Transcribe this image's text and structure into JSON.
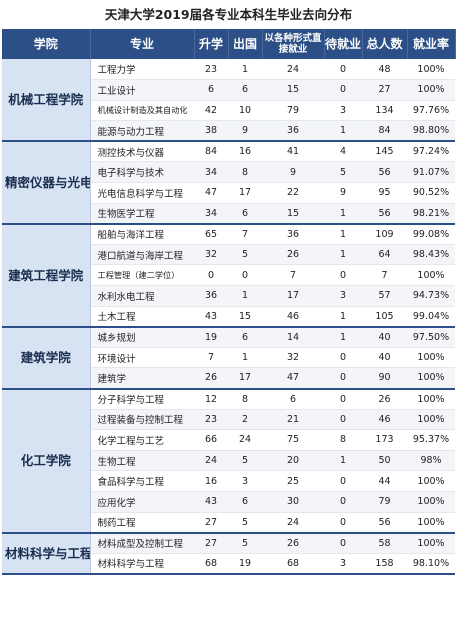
{
  "title": "天津大学2019届各专业本科生毕业去向分布",
  "headers": [
    "学院",
    "专业",
    "升学",
    "出国",
    "以各种形式直接就业",
    "待就业",
    "总人数",
    "就业率"
  ],
  "groups": [
    {
      "college": "机械工程学院",
      "rows": [
        {
          "major": "工程力学",
          "further": "23",
          "abroad": "1",
          "employed": "24",
          "pending": "0",
          "total": "48",
          "rate": "100%"
        },
        {
          "major": "工业设计",
          "further": "6",
          "abroad": "6",
          "employed": "15",
          "pending": "0",
          "total": "27",
          "rate": "100%"
        },
        {
          "major": "机械设计制造及其自动化",
          "further": "42",
          "abroad": "10",
          "employed": "79",
          "pending": "3",
          "total": "134",
          "rate": "97.76%"
        },
        {
          "major": "能源与动力工程",
          "further": "38",
          "abroad": "9",
          "employed": "36",
          "pending": "1",
          "total": "84",
          "rate": "98.80%"
        }
      ]
    },
    {
      "college": "精密仪器与光电子工程学院",
      "rows": [
        {
          "major": "测控技术与仪器",
          "further": "84",
          "abroad": "16",
          "employed": "41",
          "pending": "4",
          "total": "145",
          "rate": "97.24%"
        },
        {
          "major": "电子科学与技术",
          "further": "34",
          "abroad": "8",
          "employed": "9",
          "pending": "5",
          "total": "56",
          "rate": "91.07%"
        },
        {
          "major": "光电信息科学与工程",
          "further": "47",
          "abroad": "17",
          "employed": "22",
          "pending": "9",
          "total": "95",
          "rate": "90.52%"
        },
        {
          "major": "生物医学工程",
          "further": "34",
          "abroad": "6",
          "employed": "15",
          "pending": "1",
          "total": "56",
          "rate": "98.21%"
        }
      ]
    },
    {
      "college": "建筑工程学院",
      "rows": [
        {
          "major": "船舶与海洋工程",
          "further": "65",
          "abroad": "7",
          "employed": "36",
          "pending": "1",
          "total": "109",
          "rate": "99.08%"
        },
        {
          "major": "港口航道与海岸工程",
          "further": "32",
          "abroad": "5",
          "employed": "26",
          "pending": "1",
          "total": "64",
          "rate": "98.43%"
        },
        {
          "major": "工程管理（建二学位）",
          "further": "0",
          "abroad": "0",
          "employed": "7",
          "pending": "0",
          "total": "7",
          "rate": "100%"
        },
        {
          "major": "水利水电工程",
          "further": "36",
          "abroad": "1",
          "employed": "17",
          "pending": "3",
          "total": "57",
          "rate": "94.73%"
        },
        {
          "major": "土木工程",
          "further": "43",
          "abroad": "15",
          "employed": "46",
          "pending": "1",
          "total": "105",
          "rate": "99.04%"
        }
      ]
    },
    {
      "college": "建筑学院",
      "rows": [
        {
          "major": "城乡规划",
          "further": "19",
          "abroad": "6",
          "employed": "14",
          "pending": "1",
          "total": "40",
          "rate": "97.50%"
        },
        {
          "major": "环境设计",
          "further": "7",
          "abroad": "1",
          "employed": "32",
          "pending": "0",
          "total": "40",
          "rate": "100%"
        },
        {
          "major": "建筑学",
          "further": "26",
          "abroad": "17",
          "employed": "47",
          "pending": "0",
          "total": "90",
          "rate": "100%"
        }
      ]
    },
    {
      "college": "化工学院",
      "rows": [
        {
          "major": "分子科学与工程",
          "further": "12",
          "abroad": "8",
          "employed": "6",
          "pending": "0",
          "total": "26",
          "rate": "100%"
        },
        {
          "major": "过程装备与控制工程",
          "further": "23",
          "abroad": "2",
          "employed": "21",
          "pending": "0",
          "total": "46",
          "rate": "100%"
        },
        {
          "major": "化学工程与工艺",
          "further": "66",
          "abroad": "24",
          "employed": "75",
          "pending": "8",
          "total": "173",
          "rate": "95.37%"
        },
        {
          "major": "生物工程",
          "further": "24",
          "abroad": "5",
          "employed": "20",
          "pending": "1",
          "total": "50",
          "rate": "98%"
        },
        {
          "major": "食品科学与工程",
          "further": "16",
          "abroad": "3",
          "employed": "25",
          "pending": "0",
          "total": "44",
          "rate": "100%"
        },
        {
          "major": "应用化学",
          "further": "43",
          "abroad": "6",
          "employed": "30",
          "pending": "0",
          "total": "79",
          "rate": "100%"
        },
        {
          "major": "制药工程",
          "further": "27",
          "abroad": "5",
          "employed": "24",
          "pending": "0",
          "total": "56",
          "rate": "100%"
        }
      ]
    },
    {
      "college": "材料科学与工程学院",
      "rows": [
        {
          "major": "材料成型及控制工程",
          "further": "27",
          "abroad": "5",
          "employed": "26",
          "pending": "0",
          "total": "58",
          "rate": "100%"
        },
        {
          "major": "材料科学与工程",
          "further": "68",
          "abroad": "19",
          "employed": "68",
          "pending": "3",
          "total": "158",
          "rate": "98.10%"
        }
      ]
    }
  ],
  "colors": {
    "header_bg": "#2b4f86",
    "college_bg": "#d7e2f2",
    "stripe": "#f3f5f9"
  }
}
